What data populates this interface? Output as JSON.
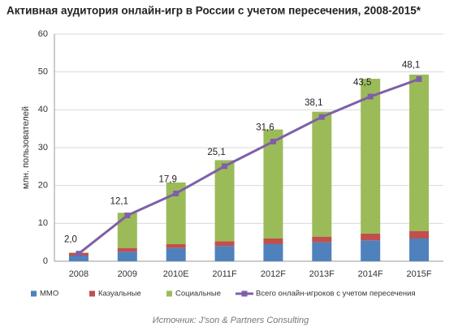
{
  "chart_data": {
    "type": "stacked_bar_line",
    "title": "Активная аудитория онлайн-игр в России с учетом пересечения, 2008-2015*",
    "y_label": "млн. пользователей",
    "source": "Источник: J'son & Partners Consulting",
    "categories": [
      "2008",
      "2009",
      "2010E",
      "2011F",
      "2012F",
      "2013F",
      "2014F",
      "2015F"
    ],
    "series": [
      {
        "name": "MMO",
        "color": "#4f81bd",
        "kind": "bar",
        "values": [
          1.5,
          2.5,
          3.5,
          4,
          4.5,
          5,
          5.5,
          6
        ]
      },
      {
        "name": "Казуальные",
        "color": "#c0504d",
        "kind": "bar",
        "values": [
          0.7,
          1,
          1,
          1.3,
          1.5,
          1.5,
          1.8,
          2
        ]
      },
      {
        "name": "Социальные",
        "color": "#9bbb59",
        "kind": "bar",
        "values": [
          0.1,
          9.3,
          16.3,
          21.4,
          28.8,
          33,
          40.9,
          41.3
        ]
      },
      {
        "name": "Всего онлайн-игроков с учетом пересечения",
        "color": "#7f5fa8",
        "kind": "line",
        "values": [
          2.0,
          12.1,
          17.9,
          25.1,
          31.6,
          38.1,
          43.5,
          48.1
        ],
        "value_labels": [
          "2,0",
          "12,1",
          "17,9",
          "25,1",
          "31,6",
          "38,1",
          "43,5",
          "48,1"
        ]
      }
    ],
    "ylim": [
      0,
      60
    ],
    "yticks": [
      0,
      10,
      20,
      30,
      40,
      50,
      60
    ],
    "grid": true,
    "legend": "bottom"
  }
}
